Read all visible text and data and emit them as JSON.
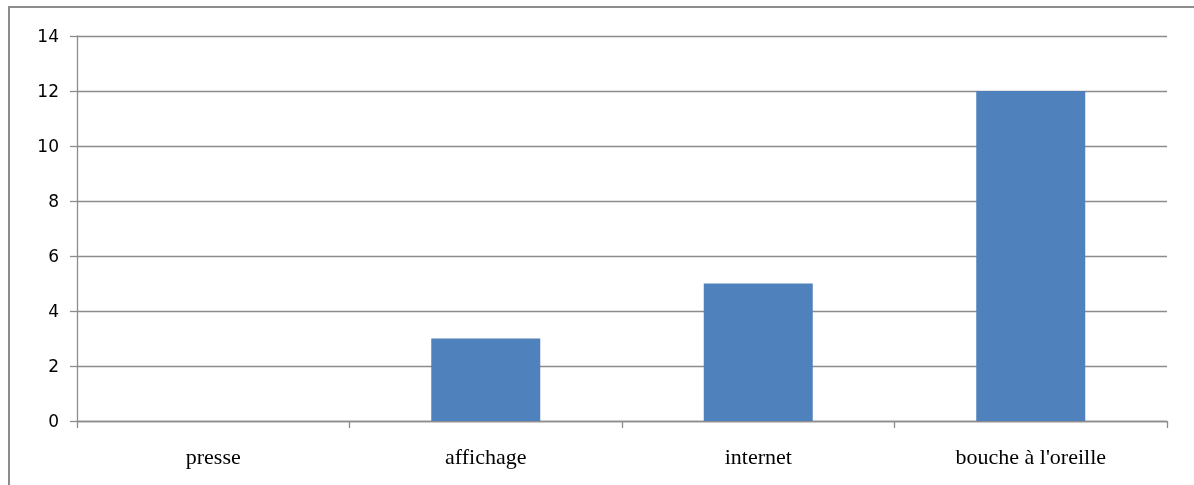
{
  "chart_data": {
    "type": "bar",
    "categories": [
      "presse",
      "affichage",
      "internet",
      "bouche à l'oreille"
    ],
    "values": [
      0,
      3,
      5,
      12
    ],
    "color": "#4f81bd",
    "ylim": [
      0,
      14
    ],
    "yticks": [
      0,
      2,
      4,
      6,
      8,
      10,
      12,
      14
    ],
    "grid": "y"
  }
}
